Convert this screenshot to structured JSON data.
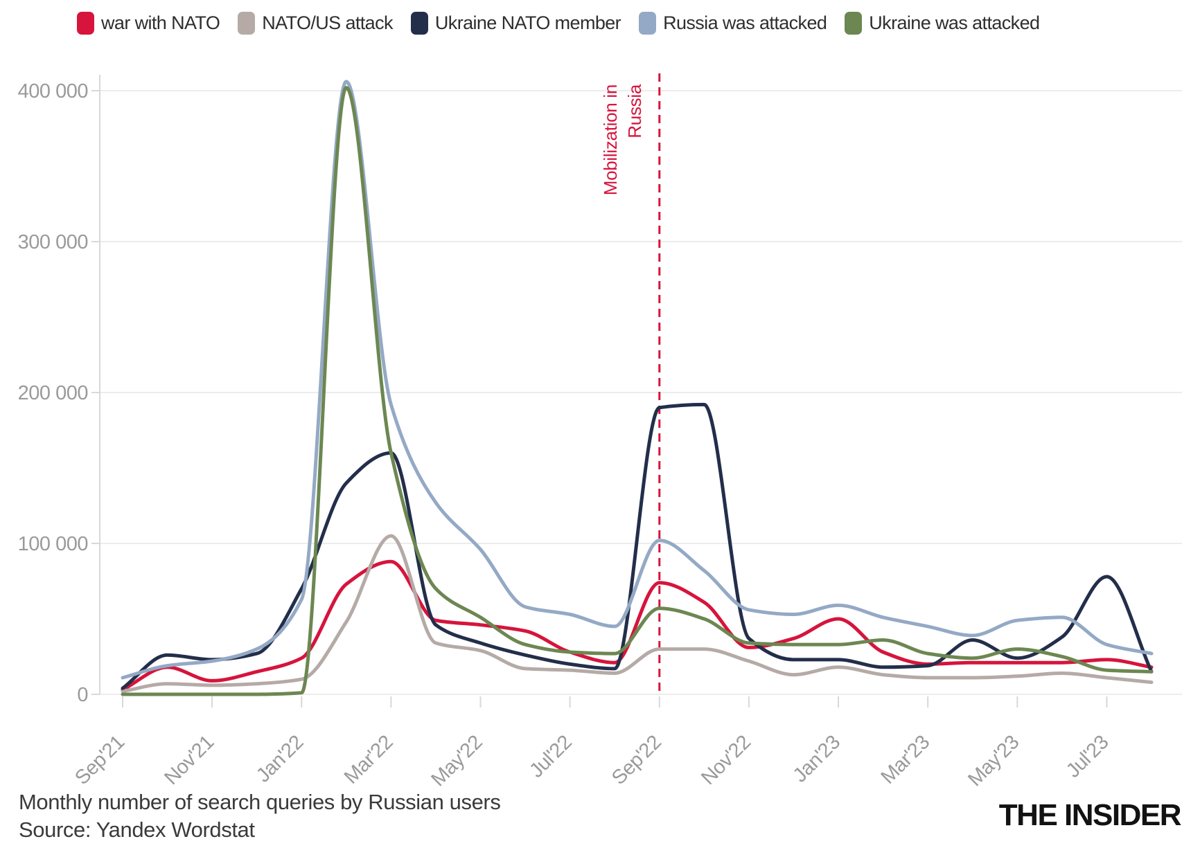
{
  "footer": {
    "title": "Monthly number of search queries by Russian users",
    "source": "Source: Yandex Wordstat",
    "logo": "THE INSIDER"
  },
  "chart_data": {
    "type": "line",
    "title": "Monthly number of search queries by Russian users",
    "source": "Source: Yandex Wordstat",
    "grid": "horizontal",
    "legend_position": "top",
    "x": [
      "Sep'21",
      "Oct'21",
      "Nov'21",
      "Dec'21",
      "Jan'22",
      "Feb'22",
      "Mar'22",
      "Apr'22",
      "May'22",
      "Jun'22",
      "Jul'22",
      "Aug'22",
      "Sep'22",
      "Oct'22",
      "Nov'22",
      "Dec'22",
      "Jan'23",
      "Feb'23",
      "Mar'23",
      "Apr'23",
      "May'23",
      "Jun'23",
      "Jul'23",
      "Aug'23"
    ],
    "x_tick_labels": [
      "Sep'21",
      "Nov'21",
      "Jan'22",
      "Mar'22",
      "May'22",
      "Jul'22",
      "Sep'22",
      "Nov'22",
      "Jan'23",
      "Mar'23",
      "May'23",
      "Jul'23"
    ],
    "y_ticks": [
      0,
      100000,
      200000,
      300000,
      400000
    ],
    "y_tick_labels": [
      "0",
      "100 000",
      "200 000",
      "300 000",
      "400 000"
    ],
    "ylim": [
      0,
      420000
    ],
    "series": [
      {
        "name": "war with NATO",
        "color": "#d6143c",
        "values": [
          3000,
          18000,
          9000,
          15000,
          24000,
          73000,
          88000,
          49000,
          46000,
          42000,
          28000,
          21000,
          74000,
          61000,
          31000,
          37000,
          50000,
          28000,
          20000,
          21000,
          21000,
          21000,
          23000,
          18000
        ]
      },
      {
        "name": "NATO/US attack",
        "color": "#b5aaa6",
        "values": [
          2000,
          7000,
          6000,
          7000,
          10000,
          48000,
          105000,
          34000,
          29000,
          17000,
          16000,
          14000,
          30000,
          30000,
          22000,
          13000,
          18000,
          13000,
          11000,
          11000,
          12000,
          14000,
          11000,
          8000
        ]
      },
      {
        "name": "Ukraine NATO member",
        "color": "#232e4a",
        "values": [
          4000,
          26000,
          23000,
          27000,
          70000,
          140000,
          160000,
          46000,
          34000,
          26000,
          20000,
          17000,
          190000,
          192000,
          37000,
          23000,
          23000,
          18000,
          19000,
          36000,
          24000,
          38000,
          78000,
          15000
        ]
      },
      {
        "name": "Russia was attacked",
        "color": "#94a9c5",
        "values": [
          11000,
          19000,
          22000,
          30000,
          63000,
          406000,
          192000,
          127000,
          96000,
          58000,
          53000,
          45000,
          102000,
          82000,
          56000,
          53000,
          59000,
          51000,
          45000,
          39000,
          49000,
          51000,
          33000,
          27000
        ]
      },
      {
        "name": "Ukraine was attacked",
        "color": "#6c8751",
        "values": [
          0,
          0,
          0,
          0,
          1000,
          402000,
          160000,
          70000,
          51000,
          33000,
          28000,
          27000,
          57000,
          50000,
          34000,
          33000,
          33000,
          36000,
          27000,
          24000,
          30000,
          25000,
          16000,
          15000
        ]
      }
    ],
    "annotation": {
      "x_month": "Sep'22",
      "label_line1": "Mobilization in",
      "label_line2": "Russia",
      "color": "#d6143c"
    },
    "style": {
      "grid_color": "#ececec",
      "axis_color": "#dad8d6",
      "axis_label_color": "#9a9a9a",
      "legend_text_color": "#2e2e2e"
    }
  }
}
